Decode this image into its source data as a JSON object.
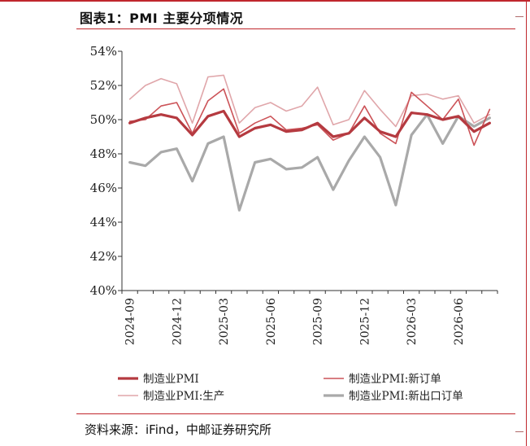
{
  "header": {
    "title": "图表1：PMI 主要分项情况"
  },
  "footer": {
    "source": "资料来源：iFind，中邮证券研究所"
  },
  "chart_data": {
    "type": "line",
    "title": "",
    "xlabel": "",
    "ylabel": "",
    "ylim": [
      40,
      54
    ],
    "y_ticks": [
      "40%",
      "42%",
      "44%",
      "46%",
      "48%",
      "50%",
      "52%",
      "54%"
    ],
    "x_tick_labels": [
      "2024-09",
      "2024-12",
      "2025-03",
      "2025-06",
      "2025-09",
      "2025-12",
      "2026-03",
      "2026-06"
    ],
    "x": [
      "2024-09",
      "2024-10",
      "2024-11",
      "2024-12",
      "2025-01",
      "2025-02",
      "2025-03",
      "2025-04",
      "2025-05",
      "2025-06",
      "2025-07",
      "2025-08",
      "2025-09",
      "2025-10",
      "2025-11",
      "2025-12",
      "2026-01",
      "2026-02",
      "2026-03",
      "2026-04",
      "2026-05",
      "2026-06",
      "2026-07",
      "2026-08"
    ],
    "grid": false,
    "legend": "bottom",
    "series": [
      {
        "name": "制造业PMI",
        "color": "#b53a40",
        "width": 3.2,
        "values": [
          49.8,
          50.1,
          50.3,
          50.1,
          49.1,
          50.2,
          50.5,
          49.0,
          49.5,
          49.7,
          49.3,
          49.4,
          49.8,
          49.0,
          49.2,
          50.1,
          49.3,
          49.0,
          50.4,
          50.3,
          50.0,
          50.2,
          49.3,
          49.8
        ]
      },
      {
        "name": "制造业PMI:新订单",
        "color": "#cc5358",
        "width": 1.6,
        "values": [
          49.9,
          50.0,
          50.8,
          51.0,
          49.2,
          51.1,
          51.8,
          49.2,
          49.8,
          50.2,
          49.4,
          49.5,
          49.7,
          48.8,
          49.2,
          50.8,
          49.2,
          48.6,
          51.6,
          50.8,
          50.0,
          51.2,
          48.5,
          50.6
        ]
      },
      {
        "name": "制造业PMI:生产",
        "color": "#e0a6aa",
        "width": 1.6,
        "values": [
          51.2,
          52.0,
          52.4,
          52.1,
          49.8,
          52.5,
          52.6,
          49.8,
          50.7,
          51.0,
          50.5,
          50.8,
          51.9,
          49.7,
          50.0,
          51.7,
          50.6,
          49.6,
          51.4,
          51.5,
          51.2,
          51.4,
          49.8,
          50.3
        ]
      },
      {
        "name": "制造业PMI:新出口订单",
        "color": "#a9a9a9",
        "width": 3.2,
        "values": [
          47.5,
          47.3,
          48.1,
          48.3,
          46.4,
          48.6,
          49.0,
          44.7,
          47.5,
          47.7,
          47.1,
          47.2,
          47.8,
          45.9,
          47.6,
          49.0,
          47.8,
          45.0,
          49.1,
          50.3,
          48.6,
          50.2,
          49.6,
          50.1
        ]
      }
    ]
  }
}
